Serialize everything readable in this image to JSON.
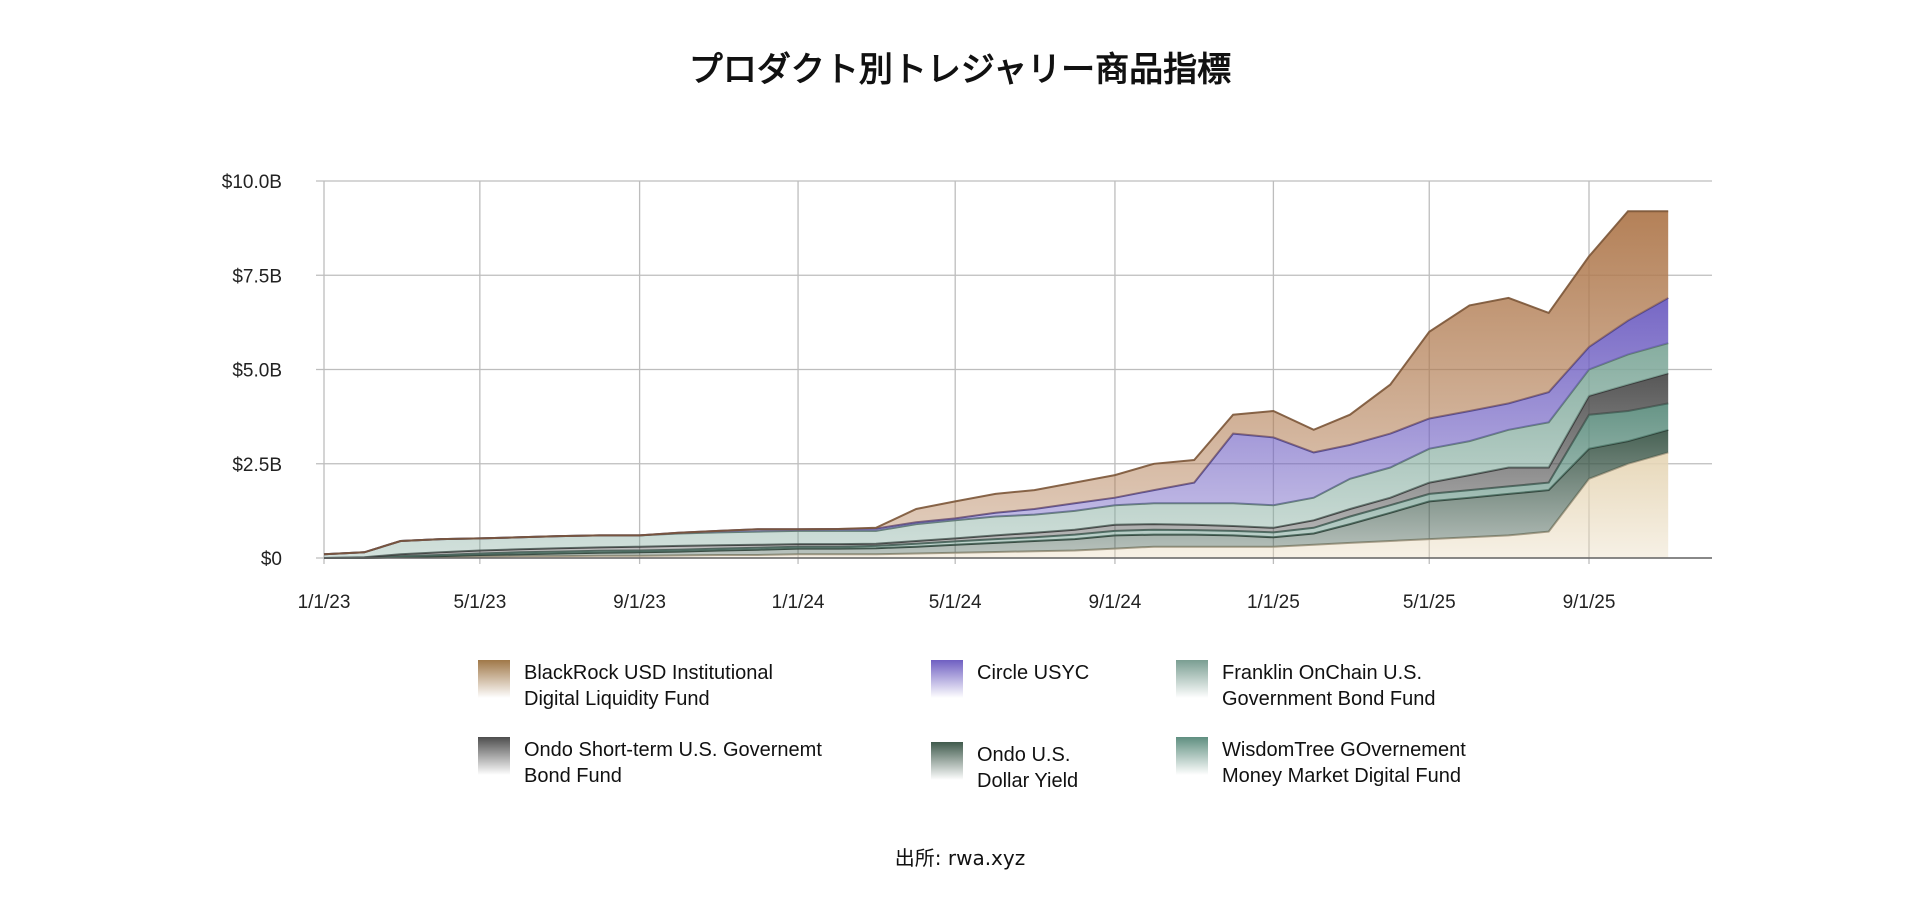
{
  "chart_data": {
    "type": "area",
    "stacked": true,
    "title": "プロダクト別トレジャリー商品指標",
    "source": "出所: rwa.xyz",
    "xlabel": "",
    "ylabel": "",
    "ylim": [
      0,
      10
    ],
    "y_unit": "USD billions",
    "y_ticks": [
      {
        "value": 0,
        "label": "$0"
      },
      {
        "value": 2.5,
        "label": "$2.5B"
      },
      {
        "value": 5,
        "label": "$5.0B"
      },
      {
        "value": 7.5,
        "label": "$7.5B"
      },
      {
        "value": 10,
        "label": "$10.0B"
      }
    ],
    "x_ticks": [
      {
        "value": "2023-01-01",
        "label": "1/1/23"
      },
      {
        "value": "2023-05-01",
        "label": "5/1/23"
      },
      {
        "value": "2023-09-01",
        "label": "9/1/23"
      },
      {
        "value": "2024-01-01",
        "label": "1/1/24"
      },
      {
        "value": "2024-05-01",
        "label": "5/1/24"
      },
      {
        "value": "2024-09-01",
        "label": "9/1/24"
      },
      {
        "value": "2025-01-01",
        "label": "1/1/25"
      },
      {
        "value": "2025-05-01",
        "label": "5/1/25"
      },
      {
        "value": "2025-09-01",
        "label": "9/1/25"
      }
    ],
    "grid": true,
    "legend_placement": "bottom",
    "x": [
      "2023-01-01",
      "2023-02-01",
      "2023-03-01",
      "2023-04-01",
      "2023-05-01",
      "2023-06-01",
      "2023-07-01",
      "2023-08-01",
      "2023-09-01",
      "2023-10-01",
      "2023-11-01",
      "2023-12-01",
      "2024-01-01",
      "2024-02-01",
      "2024-03-01",
      "2024-04-01",
      "2024-05-01",
      "2024-06-01",
      "2024-07-01",
      "2024-08-01",
      "2024-09-01",
      "2024-10-01",
      "2024-11-01",
      "2024-12-01",
      "2025-01-01",
      "2025-02-01",
      "2025-03-01",
      "2025-04-01",
      "2025-05-01",
      "2025-06-01",
      "2025-07-01",
      "2025-08-01",
      "2025-09-01",
      "2025-10-01",
      "2025-11-01"
    ],
    "series": [
      {
        "color": "#e6d6b6",
        "values": [
          0,
          0,
          0.02,
          0.03,
          0.04,
          0.05,
          0.05,
          0.06,
          0.06,
          0.07,
          0.08,
          0.08,
          0.1,
          0.1,
          0.1,
          0.12,
          0.14,
          0.16,
          0.18,
          0.2,
          0.25,
          0.3,
          0.3,
          0.3,
          0.3,
          0.35,
          0.4,
          0.45,
          0.5,
          0.55,
          0.6,
          0.7,
          2.1,
          2.5,
          2.8
        ]
      },
      {
        "name": "Ondo U.S.\nDollar Yield",
        "color": "#3f5a4c",
        "values": [
          0,
          0,
          0,
          0.02,
          0.04,
          0.05,
          0.07,
          0.08,
          0.09,
          0.1,
          0.12,
          0.14,
          0.15,
          0.15,
          0.16,
          0.18,
          0.21,
          0.24,
          0.27,
          0.3,
          0.35,
          0.32,
          0.32,
          0.3,
          0.25,
          0.3,
          0.5,
          0.75,
          1.0,
          1.05,
          1.1,
          1.1,
          0.8,
          0.6,
          0.6
        ]
      },
      {
        "name": "WisdomTree GOvernement\nMoney Market Digital Fund",
        "color": "#5f8f80",
        "values": [
          0,
          0.01,
          0.03,
          0.03,
          0.04,
          0.05,
          0.05,
          0.05,
          0.05,
          0.05,
          0.05,
          0.05,
          0.05,
          0.05,
          0.06,
          0.08,
          0.09,
          0.1,
          0.1,
          0.12,
          0.12,
          0.13,
          0.12,
          0.12,
          0.13,
          0.15,
          0.2,
          0.2,
          0.2,
          0.2,
          0.2,
          0.2,
          0.9,
          0.8,
          0.7
        ]
      },
      {
        "name": "Ondo Short-term U.S. Governemt\nBond Fund",
        "color": "#4e4e4e",
        "values": [
          0,
          0.01,
          0.05,
          0.07,
          0.08,
          0.08,
          0.09,
          0.09,
          0.1,
          0.1,
          0.09,
          0.08,
          0.07,
          0.07,
          0.06,
          0.07,
          0.08,
          0.1,
          0.12,
          0.13,
          0.16,
          0.15,
          0.14,
          0.13,
          0.12,
          0.2,
          0.2,
          0.2,
          0.3,
          0.4,
          0.5,
          0.4,
          0.5,
          0.7,
          0.8
        ]
      },
      {
        "name": "Franklin OnChain U.S.\nGovernment Bond Fund",
        "color": "#80a99b",
        "values": [
          0.1,
          0.13,
          0.35,
          0.35,
          0.32,
          0.32,
          0.32,
          0.32,
          0.3,
          0.33,
          0.34,
          0.35,
          0.35,
          0.35,
          0.34,
          0.45,
          0.48,
          0.5,
          0.48,
          0.5,
          0.52,
          0.55,
          0.57,
          0.6,
          0.6,
          0.6,
          0.8,
          0.8,
          0.9,
          0.9,
          1.0,
          1.2,
          0.7,
          0.8,
          0.8
        ]
      },
      {
        "name": "Circle USYC",
        "color": "#6f5fc2",
        "values": [
          0,
          0,
          0,
          0,
          0,
          0,
          0,
          0,
          0,
          0.02,
          0.04,
          0.06,
          0.04,
          0.05,
          0.06,
          0.05,
          0.05,
          0.1,
          0.15,
          0.2,
          0.2,
          0.35,
          0.55,
          1.85,
          1.8,
          1.2,
          0.9,
          0.9,
          0.8,
          0.8,
          0.7,
          0.8,
          0.6,
          0.9,
          1.2
        ]
      },
      {
        "name": "BlackRock USD Institutional\nDigital Liquidity Fund",
        "color": "#b07a4f",
        "values": [
          0,
          0,
          0,
          0,
          0,
          0,
          0,
          0,
          0,
          0,
          0,
          0,
          0,
          0,
          0.02,
          0.35,
          0.45,
          0.5,
          0.5,
          0.55,
          0.6,
          0.7,
          0.6,
          0.5,
          0.7,
          0.6,
          0.8,
          1.3,
          2.3,
          2.8,
          2.8,
          2.1,
          2.4,
          2.9,
          2.3
        ]
      }
    ],
    "legend": [
      {
        "label": "BlackRock USD Institutional\nDigital Liquidity Fund",
        "color": "#a07848"
      },
      {
        "label": "Circle USYC",
        "color": "#6f5fc2"
      },
      {
        "label": "Franklin OnChain U.S.\nGovernment Bond Fund",
        "color": "#7a9e92"
      },
      {
        "label": "Ondo Short-term U.S. Governemt\nBond Fund",
        "color": "#4e4e4e"
      },
      {
        "label": "Ondo U.S.\nDollar Yield",
        "color": "#3f5a4c"
      },
      {
        "label": "WisdomTree GOvernement\nMoney Market Digital Fund",
        "color": "#5f8f80"
      }
    ]
  }
}
